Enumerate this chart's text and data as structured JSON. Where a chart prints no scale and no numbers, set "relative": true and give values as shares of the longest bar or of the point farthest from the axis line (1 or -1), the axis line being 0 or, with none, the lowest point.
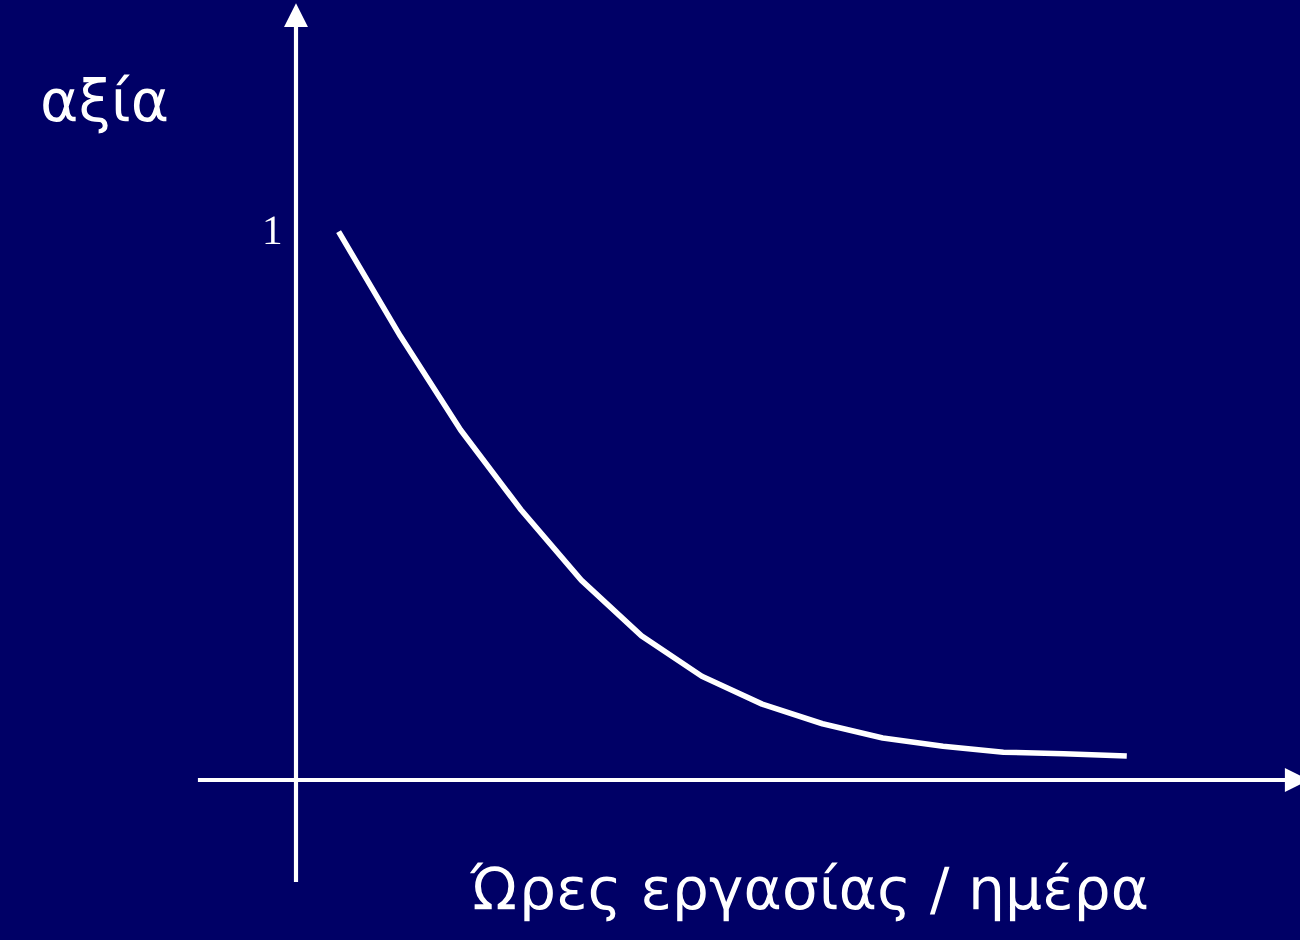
{
  "chart_data": {
    "type": "line",
    "relative": true,
    "ylabel": "αξία",
    "xlabel": "Ώρες εργασίας / ημέρα",
    "annotations": [
      "1"
    ],
    "categories": [
      null,
      null,
      null,
      null,
      null,
      null,
      null,
      null,
      null,
      null,
      null,
      null,
      null,
      null
    ],
    "series": [
      {
        "color": "#ffffff",
        "values": [
          1,
          0.813,
          0.641,
          0.495,
          0.366,
          0.264,
          0.19,
          0.139,
          0.103,
          0.077,
          0.062,
          0.051,
          0.048,
          0.044
        ]
      }
    ],
    "marker": "none",
    "line_style": "solid"
  }
}
